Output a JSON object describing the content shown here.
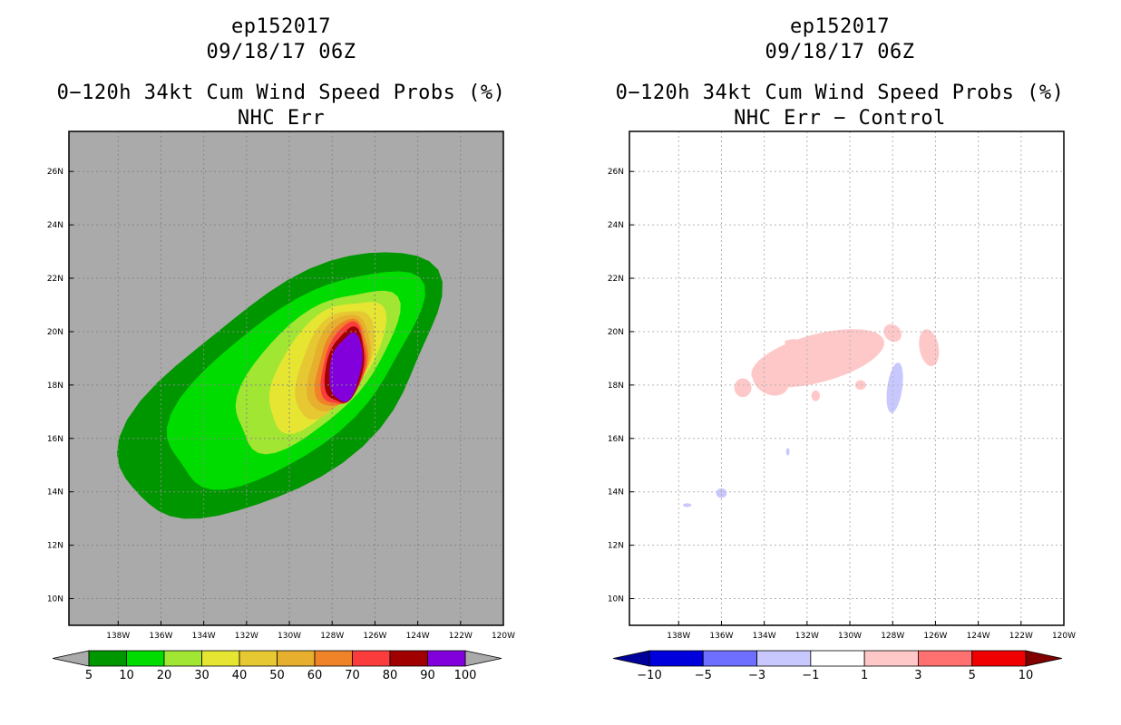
{
  "left_panel": {
    "line1": "ep152017",
    "line2": "09/18/17 06Z",
    "line3": "0−120h 34kt Cum Wind Speed Probs (%)",
    "line4": "NHC Err"
  },
  "right_panel": {
    "line1": "ep152017",
    "line2": "09/18/17 06Z",
    "line3": "0−120h 34kt Cum Wind Speed Probs (%)",
    "line4": "NHC Err − Control"
  },
  "chart_data": [
    {
      "type": "heatmap",
      "title": "0−120h 34kt Cum Wind Speed Probs (%) NHC Err",
      "x_ticks": [
        "138W",
        "136W",
        "134W",
        "132W",
        "130W",
        "128W",
        "126W",
        "124W",
        "122W",
        "120W"
      ],
      "x_values": [
        -138,
        -136,
        -134,
        -132,
        -130,
        -128,
        -126,
        -124,
        -122,
        -120
      ],
      "y_ticks": [
        "10N",
        "12N",
        "14N",
        "16N",
        "18N",
        "20N",
        "22N",
        "24N",
        "26N"
      ],
      "y_values": [
        10,
        12,
        14,
        16,
        18,
        20,
        22,
        24,
        26
      ],
      "xlim": [
        -140.3,
        -120
      ],
      "ylim": [
        9,
        27.5
      ],
      "background_color": "#aaaaaa",
      "colorbar": {
        "levels": [
          "5",
          "10",
          "20",
          "30",
          "40",
          "50",
          "60",
          "70",
          "80",
          "90",
          "100"
        ],
        "colors": [
          "#009600",
          "#00dc00",
          "#a0e632",
          "#e6e632",
          "#e6c832",
          "#e6af2d",
          "#f08228",
          "#fa3c3c",
          "#a00000",
          "#8200dc"
        ],
        "under_color": "#aaaaaa",
        "over_color": "#aaaaaa"
      },
      "center": {
        "lon": -127.3,
        "lat": 18.7
      }
    },
    {
      "type": "heatmap",
      "title": "0−120h 34kt Cum Wind Speed Probs (%) NHC Err − Control",
      "x_ticks": [
        "138W",
        "136W",
        "134W",
        "132W",
        "130W",
        "128W",
        "126W",
        "124W",
        "122W",
        "120W"
      ],
      "x_values": [
        -138,
        -136,
        -134,
        -132,
        -130,
        -128,
        -126,
        -124,
        -122,
        -120
      ],
      "y_ticks": [
        "10N",
        "12N",
        "14N",
        "16N",
        "18N",
        "20N",
        "22N",
        "24N",
        "26N"
      ],
      "y_values": [
        10,
        12,
        14,
        16,
        18,
        20,
        22,
        24,
        26
      ],
      "xlim": [
        -140.3,
        -120
      ],
      "ylim": [
        9,
        27.5
      ],
      "grid": true,
      "background_color": "#ffffff",
      "colorbar": {
        "levels": [
          "−10",
          "−5",
          "−3",
          "−1",
          "1",
          "3",
          "5",
          "10"
        ],
        "colors": [
          "#0000dc",
          "#6e6eff",
          "#c8c8ff",
          "#ffffff",
          "#ffc8c8",
          "#ff7070",
          "#f00000"
        ],
        "under_color": "#00009a",
        "over_color": "#800000"
      },
      "positive_color": "#ffc8c8",
      "negative_color": "#c8c8ff"
    }
  ]
}
